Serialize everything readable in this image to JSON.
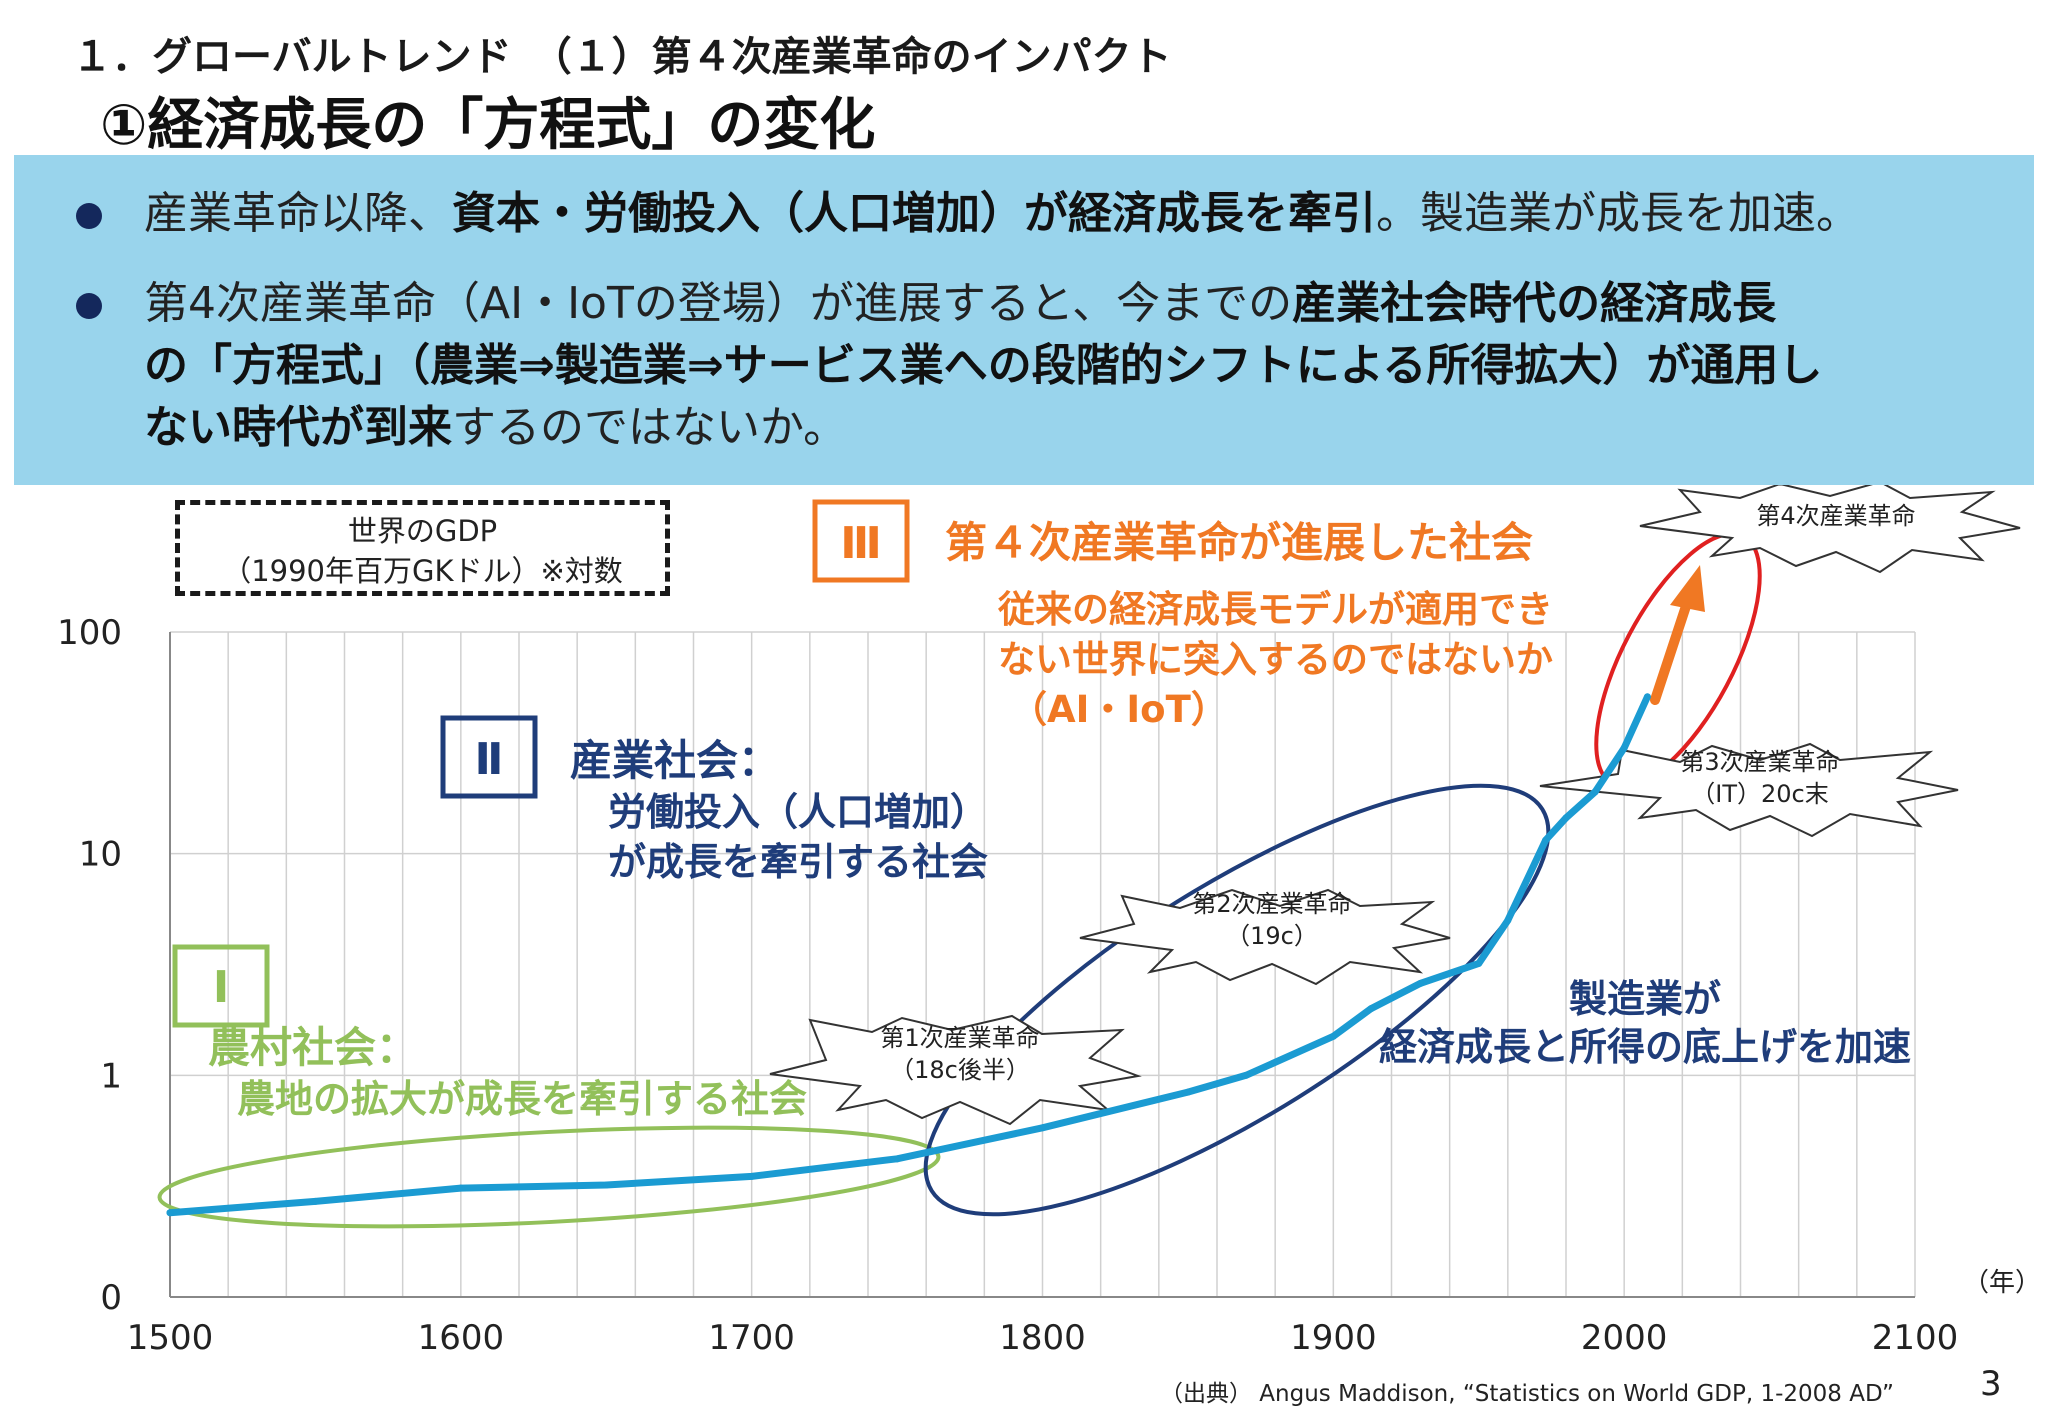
{
  "header": {
    "subtitle": "１．グローバルトレンド　（１）第４次産業革命のインパクト",
    "title": "①経済成長の「方程式」の変化"
  },
  "summary": {
    "bullet1": {
      "pre": "産業革命以降、",
      "bold": "資本・労働投入（人口増加）が経済成長を牽引",
      "post": "。製造業が成長を加速。"
    },
    "bullet2": {
      "line1_pre": "第4次産業革命（AI・IoTの登場）が進展すると、今までの",
      "line1_bold": "産業社会時代の経済成長",
      "line2_bold": "の「方程式」（農業⇒製造業⇒サービス業への段階的シフトによる所得拡大）が通用し",
      "line3_bold": "ない時代が到来",
      "line3_post": "するのではないか。"
    }
  },
  "legend_box": {
    "line1": "世界のGDP",
    "line2": "（1990年百万GKドル）※対数"
  },
  "phases": {
    "phase1": {
      "numeral": "Ⅰ",
      "title": "農村社会：",
      "desc": "農地の拡大が成長を牽引する社会",
      "color": "#92c05a"
    },
    "phase2": {
      "numeral": "Ⅱ",
      "title": "産業社会：",
      "desc1": "労働投入（人口増加）",
      "desc2": "が成長を牽引する社会",
      "color": "#1f3d7a"
    },
    "phase3": {
      "numeral": "Ⅲ",
      "title": "第４次産業革命が進展した社会",
      "desc1": "従来の経済成長モデルが適用でき",
      "desc2": "ない世界に突入するのではないか",
      "desc3": "（AI・IoT）",
      "color": "#f07823"
    }
  },
  "manufacturing_note": {
    "line1": "製造業が",
    "line2": "経済成長と所得の底上げを加速",
    "color": "#1f3d7a"
  },
  "callouts": [
    {
      "line1": "第1次産業革命",
      "line2": "（18c後半）"
    },
    {
      "line1": "第2次産業革命",
      "line2": "（19c）"
    },
    {
      "line1": "第3次産業革命",
      "line2": "（IT）20c末"
    },
    {
      "line1": "第4次産業革命",
      "line2": ""
    }
  ],
  "unit_label": "（年）",
  "source": "（出典） Angus Maddison, “Statistics on World GDP, 1-2008 AD”",
  "page_number": "3",
  "chart_data": {
    "type": "line",
    "title": "",
    "xlabel": "",
    "ylabel": "",
    "xlim": [
      1500,
      2100
    ],
    "x_ticks": [
      1500,
      1600,
      1700,
      1800,
      1900,
      2000,
      2100
    ],
    "y_scale": "log",
    "y_ticks": [
      0.1,
      1,
      10,
      100
    ],
    "y_tick_labels": [
      "0",
      "1",
      "10",
      "100"
    ],
    "grid": true,
    "line_color": "#1b9bd2",
    "series": [
      {
        "name": "",
        "x": [
          1500,
          1550,
          1600,
          1650,
          1700,
          1750,
          1800,
          1850,
          1870,
          1900,
          1913,
          1930,
          1950,
          1960,
          1973,
          1980,
          1990,
          2000,
          2008
        ],
        "y": [
          0.24,
          0.27,
          0.31,
          0.32,
          0.35,
          0.42,
          0.58,
          0.84,
          1.0,
          1.5,
          2.0,
          2.6,
          3.2,
          5.0,
          11.5,
          14.5,
          19.0,
          30.0,
          51.0
        ]
      }
    ]
  }
}
